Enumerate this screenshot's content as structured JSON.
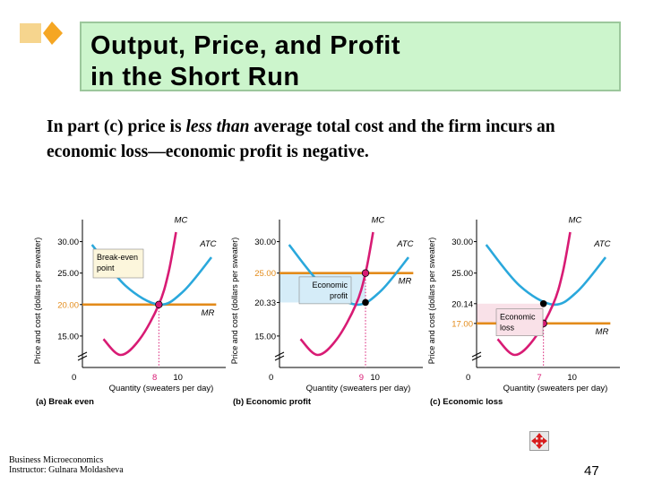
{
  "slide": {
    "title_line1": "Output, Price, and Profit",
    "title_line2": "in the Short Run",
    "body_part1": "In part (c) price is ",
    "body_italic": "less than",
    "body_part2": " average total cost and the firm incurs an economic loss—economic profit is negative.",
    "footer_line1": "Business Microeconomics",
    "footer_line2": "Instructor: Gulnara Moldasheva",
    "page_number": "47",
    "nav_icon": "move-arrows-icon"
  },
  "colors": {
    "mc": "#d81b74",
    "atc": "#2aa8dc",
    "mr": "#e38b1a",
    "title_bg": "#ccf5cc",
    "diamond": "#f5a623",
    "profit_fill": "#d5ecf8",
    "loss_fill": "#f9e1e8"
  },
  "chart_data": [
    {
      "type": "line",
      "caption": "(a) Break even",
      "ylabel": "Price and cost (dollars per sweater)",
      "xlabel": "Quantity (sweaters per day)",
      "x_ticks": [
        "0",
        "10"
      ],
      "x_mark": "8",
      "y_ticks": [
        "15.00",
        "20.00",
        "25.00",
        "30.00"
      ],
      "y_highlight": "20.00",
      "price": 20.0,
      "quantity": 8,
      "series": [
        {
          "name": "MC",
          "x": [
            2.2,
            4.0,
            6.0,
            8.0,
            9.0,
            9.8
          ],
          "y": [
            14.5,
            12.0,
            14.5,
            20.0,
            25.0,
            31.5
          ]
        },
        {
          "name": "ATC",
          "x": [
            1.0,
            4.5,
            8.0,
            10.5,
            13.5
          ],
          "y": [
            29.5,
            23.0,
            20.0,
            22.0,
            27.5
          ]
        },
        {
          "name": "MR",
          "x": [
            0,
            14
          ],
          "y": [
            20.0,
            20.0
          ]
        }
      ],
      "annotation": "Break-even point"
    },
    {
      "type": "line",
      "caption": "(b) Economic profit",
      "ylabel": "Price and cost (dollars per sweater)",
      "xlabel": "Quantity (sweaters per day)",
      "x_ticks": [
        "0",
        "10"
      ],
      "x_mark": "9",
      "y_ticks": [
        "15.00",
        "20.33",
        "25.00",
        "30.00"
      ],
      "y_highlight": "25.00",
      "price": 25.0,
      "quantity": 9,
      "average_total_cost": 20.33,
      "series": [
        {
          "name": "MC",
          "x": [
            2.2,
            4.0,
            6.0,
            8.0,
            9.0,
            9.8
          ],
          "y": [
            14.5,
            12.0,
            14.5,
            20.0,
            25.0,
            31.5
          ]
        },
        {
          "name": "ATC",
          "x": [
            1.0,
            4.5,
            8.0,
            10.5,
            13.5
          ],
          "y": [
            29.5,
            23.0,
            20.0,
            22.0,
            27.5
          ]
        },
        {
          "name": "MR",
          "x": [
            0,
            14
          ],
          "y": [
            25.0,
            25.0
          ]
        }
      ],
      "annotation": "Economic profit"
    },
    {
      "type": "line",
      "caption": "(c) Economic loss",
      "ylabel": "Price and cost (dollars per sweater)",
      "xlabel": "Quantity (sweaters per day)",
      "x_ticks": [
        "0",
        "10"
      ],
      "x_mark": "7",
      "y_ticks": [
        "17.00",
        "20.14",
        "25.00",
        "30.00"
      ],
      "y_highlight": "17.00",
      "price": 17.0,
      "quantity": 7,
      "average_total_cost": 20.14,
      "series": [
        {
          "name": "MC",
          "x": [
            2.2,
            4.0,
            6.0,
            8.0,
            9.0,
            9.8
          ],
          "y": [
            14.5,
            12.0,
            14.5,
            20.0,
            25.0,
            31.5
          ]
        },
        {
          "name": "ATC",
          "x": [
            1.0,
            4.5,
            8.0,
            10.5,
            13.5
          ],
          "y": [
            29.5,
            23.0,
            20.0,
            22.0,
            27.5
          ]
        },
        {
          "name": "MR",
          "x": [
            0,
            14
          ],
          "y": [
            17.0,
            17.0
          ]
        }
      ],
      "annotation": "Economic loss"
    }
  ]
}
